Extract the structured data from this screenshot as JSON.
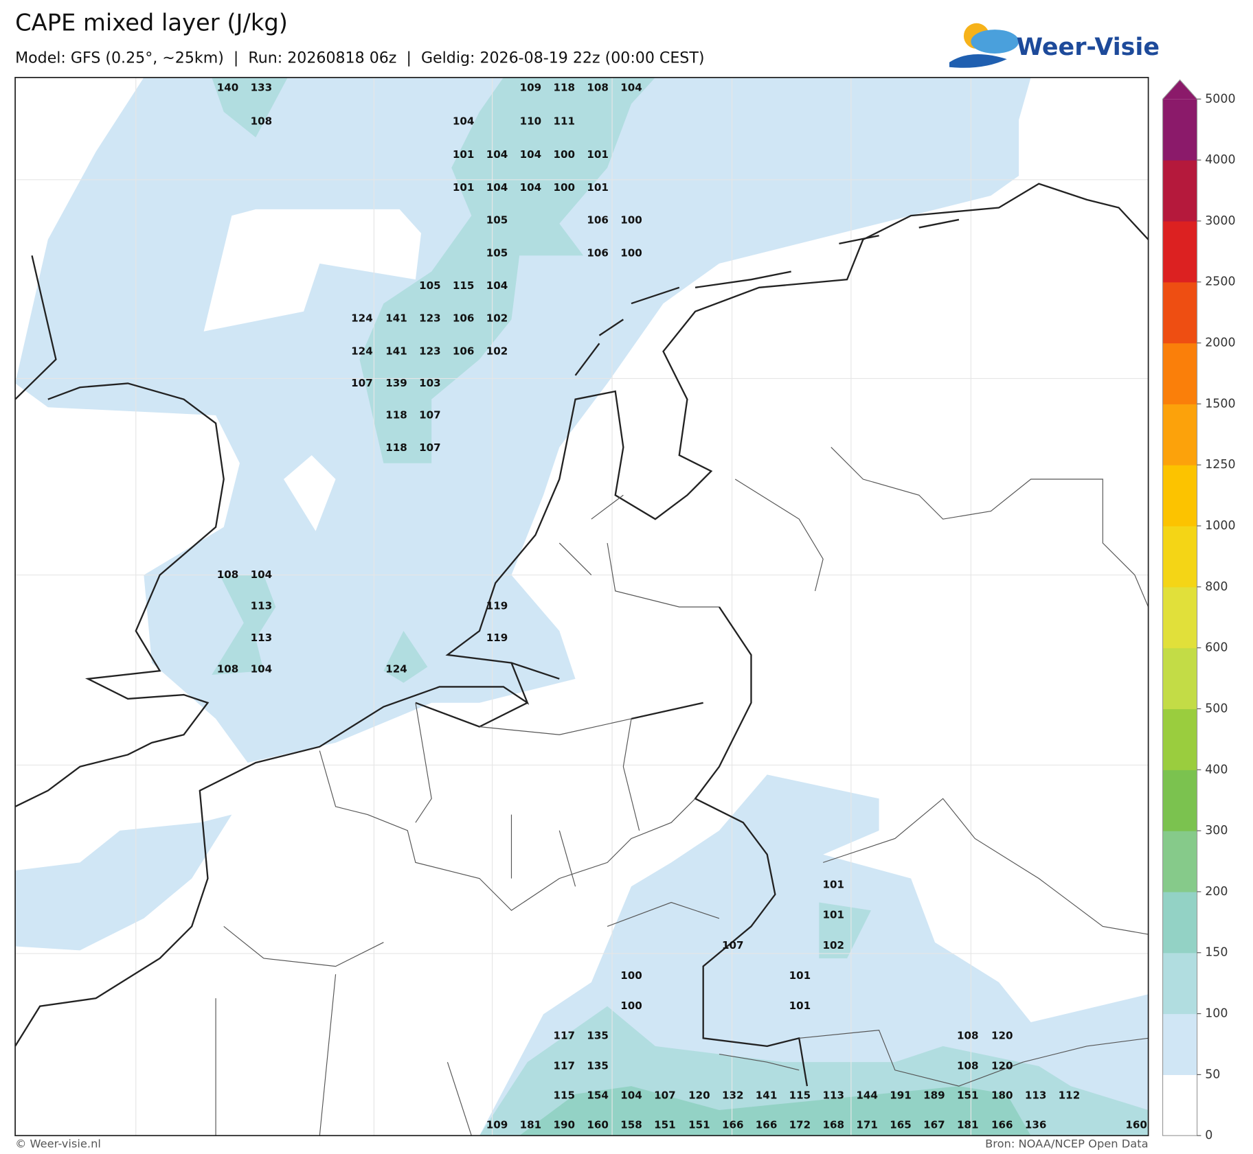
{
  "header": {
    "title": "CAPE mixed layer (J/kg)",
    "subtitle": "Model: GFS (0.25°, ~25km)  |  Run: 20260818 06z  |  Geldig: 2026-08-19 22z (00:00 CEST)",
    "logo": "Weer-Visie"
  },
  "map": {
    "labels": [
      140,
      133,
      109,
      118,
      108,
      104,
      108,
      104,
      110,
      111,
      101,
      104,
      104,
      100,
      101,
      101,
      104,
      104,
      100,
      101,
      105,
      106,
      100,
      105,
      106,
      100,
      105,
      115,
      104,
      124,
      141,
      123,
      106,
      102,
      124,
      141,
      123,
      106,
      102,
      107,
      139,
      103,
      118,
      107,
      118,
      107,
      108,
      104,
      113,
      119,
      113,
      119,
      108,
      104,
      124,
      101,
      101,
      107,
      102,
      100,
      101,
      100,
      101,
      117,
      135,
      108,
      120,
      117,
      135,
      108,
      120,
      115,
      154,
      104,
      107,
      120,
      132,
      141,
      115,
      113,
      144,
      191,
      189,
      151,
      180,
      113,
      112,
      109,
      181,
      190,
      160,
      158,
      151,
      151,
      166,
      166,
      172,
      168,
      171,
      165,
      167,
      181,
      166,
      136,
      160
    ]
  },
  "colorbar": {
    "ticks": [
      0,
      50,
      100,
      150,
      200,
      300,
      400,
      500,
      600,
      800,
      1000,
      1250,
      1500,
      2000,
      2500,
      3000,
      4000,
      5000
    ],
    "colors": [
      "#ffffff",
      "#d0e6f5",
      "#b1dde0",
      "#93d2c5",
      "#86ca8a",
      "#7bc24f",
      "#9acd3e",
      "#c3dc46",
      "#e1e03a",
      "#f4d516",
      "#fcc300",
      "#fca20b",
      "#fa7f0a",
      "#ee4e12",
      "#dc2121",
      "#b5193c",
      "#8b1a6a"
    ]
  },
  "footer": {
    "left": "© Weer-visie.nl",
    "right": "Bron: NOAA/NCEP Open Data"
  }
}
